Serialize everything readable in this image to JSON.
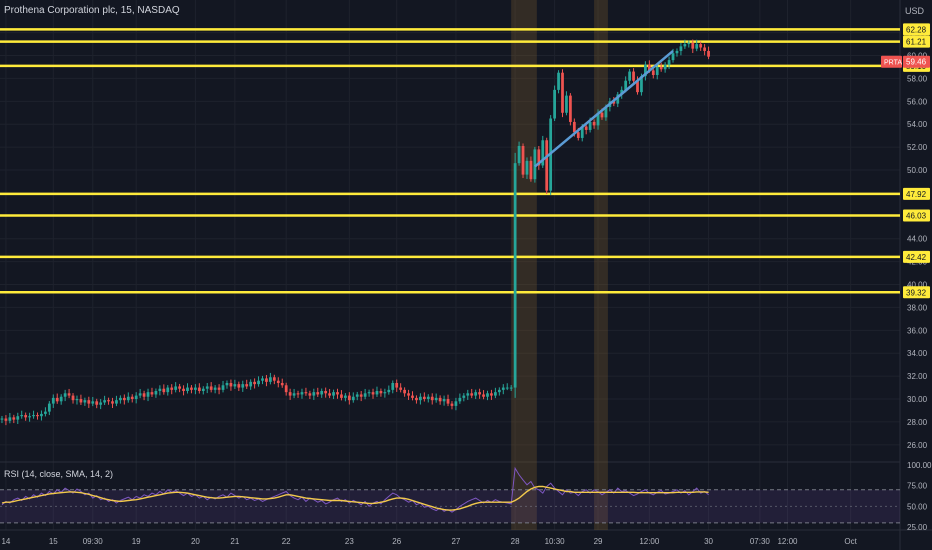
{
  "chart_title": "Prothena Corporation plc, 15, NASDAQ",
  "currency": "USD",
  "symbol": "PRTA",
  "last_price": "59.46",
  "chart_data": {
    "type": "candlestick",
    "y_ticks": [
      "62.00",
      "60.00",
      "58.00",
      "56.00",
      "54.00",
      "52.00",
      "50.00",
      "48.00",
      "46.00",
      "44.00",
      "42.00",
      "40.00",
      "38.00",
      "36.00",
      "34.00",
      "32.00",
      "30.00",
      "28.00",
      "26.00"
    ],
    "y_range": [
      24.5,
      64.5
    ],
    "x_ticks": [
      {
        "label": "14",
        "slot": 1
      },
      {
        "label": "15",
        "slot": 13
      },
      {
        "label": "09:30",
        "slot": 23
      },
      {
        "label": "19",
        "slot": 34
      },
      {
        "label": "20",
        "slot": 49
      },
      {
        "label": "21",
        "slot": 59
      },
      {
        "label": "22",
        "slot": 72
      },
      {
        "label": "23",
        "slot": 88
      },
      {
        "label": "26",
        "slot": 100
      },
      {
        "label": "27",
        "slot": 115
      },
      {
        "label": "28",
        "slot": 130
      },
      {
        "label": "10:30",
        "slot": 140
      },
      {
        "label": "29",
        "slot": 151
      },
      {
        "label": "12:00",
        "slot": 164
      },
      {
        "label": "30",
        "slot": 179
      },
      {
        "label": "07:30",
        "slot": 192
      },
      {
        "label": "12:00",
        "slot": 199
      },
      {
        "label": "Oct",
        "slot": 215
      }
    ],
    "slots": 228,
    "levels": [
      {
        "value": 62.28,
        "label": "62.28"
      },
      {
        "value": 61.21,
        "label": "61.21"
      },
      {
        "value": 59.1,
        "label": "59.10"
      },
      {
        "value": 47.92,
        "label": "47.92"
      },
      {
        "value": 46.03,
        "label": "46.03"
      },
      {
        "value": 42.42,
        "label": "42.42"
      },
      {
        "value": 39.32,
        "label": "39.32"
      }
    ],
    "trendline": {
      "from": [
        135,
        50.3
      ],
      "to": [
        170,
        60.4
      ]
    },
    "session_highlights": [
      [
        130,
        135
      ],
      [
        151,
        153
      ]
    ],
    "closes": [
      28.3,
      28.1,
      28.4,
      28.2,
      28.5,
      28.6,
      28.4,
      28.5,
      28.6,
      28.5,
      28.7,
      28.9,
      29.6,
      30.1,
      29.8,
      30.2,
      30.5,
      30.3,
      29.9,
      30.0,
      29.7,
      29.9,
      29.6,
      29.8,
      29.5,
      29.7,
      29.9,
      29.8,
      29.6,
      29.9,
      30.1,
      29.9,
      30.2,
      30.0,
      30.3,
      30.5,
      30.2,
      30.6,
      30.4,
      30.7,
      30.9,
      30.6,
      31.0,
      30.8,
      31.1,
      30.9,
      30.7,
      31.0,
      30.8,
      31.0,
      30.7,
      30.9,
      31.1,
      30.8,
      31.0,
      30.8,
      31.2,
      31.4,
      31.1,
      31.3,
      31.0,
      31.3,
      31.1,
      31.5,
      31.3,
      31.6,
      31.8,
      31.5,
      31.9,
      31.6,
      31.4,
      31.2,
      30.6,
      30.3,
      30.5,
      30.4,
      30.6,
      30.5,
      30.3,
      30.6,
      30.4,
      30.7,
      30.5,
      30.3,
      30.6,
      30.4,
      30.1,
      30.3,
      29.9,
      30.2,
      30.4,
      30.2,
      30.5,
      30.6,
      30.4,
      30.7,
      30.5,
      30.6,
      30.8,
      31.4,
      31.0,
      30.8,
      30.5,
      30.3,
      30.1,
      29.9,
      30.2,
      30.0,
      30.2,
      29.9,
      30.1,
      29.8,
      30.0,
      29.6,
      29.4,
      29.8,
      30.1,
      30.3,
      30.5,
      30.3,
      30.6,
      30.4,
      30.2,
      30.5,
      30.3,
      30.6,
      30.8,
      31.0,
      31.0,
      31.0,
      50.6,
      52.1,
      49.6,
      50.8,
      49.2,
      51.8,
      50.4,
      52.6,
      48.2,
      54.5,
      57.0,
      58.5,
      55.0,
      56.5,
      54.2,
      53.3,
      52.8,
      53.8,
      53.5,
      54.2,
      53.9,
      55.0,
      54.6,
      55.5,
      56.0,
      55.8,
      56.6,
      57.0,
      57.8,
      58.6,
      57.8,
      56.8,
      58.2,
      59.2,
      58.7,
      58.3,
      59.0,
      58.8,
      59.2,
      59.6,
      60.2,
      60.4,
      60.8,
      61.0,
      61.1,
      60.6,
      61.0,
      60.7,
      60.4,
      59.9
    ],
    "rsi_ticks": [
      "100.00",
      "75.00",
      "50.00",
      "25.00"
    ],
    "rsi_range": [
      25,
      100
    ],
    "rsi_bands": [
      30,
      70
    ],
    "rsi": [
      52,
      56,
      54,
      58,
      60,
      57,
      62,
      59,
      64,
      61,
      66,
      63,
      68,
      65,
      70,
      67,
      72,
      69,
      66,
      71,
      68,
      64,
      66,
      60,
      63,
      58,
      60,
      56,
      58,
      54,
      57,
      59,
      61,
      58,
      62,
      60,
      64,
      62,
      66,
      64,
      68,
      65,
      70,
      67,
      69,
      66,
      63,
      66,
      62,
      64,
      60,
      62,
      58,
      61,
      59,
      62,
      64,
      61,
      66,
      63,
      60,
      62,
      58,
      60,
      57,
      59,
      56,
      58,
      60,
      62,
      64,
      66,
      68,
      63,
      60,
      58,
      61,
      56,
      60,
      58,
      55,
      57,
      53,
      55,
      58,
      60,
      56,
      58,
      54,
      57,
      55,
      52,
      56,
      50,
      54,
      56,
      53,
      58,
      62,
      66,
      64,
      60,
      58,
      55,
      57,
      52,
      54,
      49,
      50,
      47,
      45,
      48,
      44,
      46,
      43,
      46,
      50,
      53,
      56,
      58,
      60,
      57,
      54,
      57,
      55,
      58,
      56,
      55,
      54,
      53,
      96,
      88,
      82,
      76,
      80,
      72,
      70,
      66,
      74,
      78,
      72,
      68,
      64,
      70,
      66,
      67,
      63,
      68,
      70,
      66,
      70,
      68,
      64,
      67,
      70,
      66,
      72,
      68,
      69,
      66,
      63,
      65,
      68,
      70,
      66,
      64,
      67,
      69,
      65,
      66,
      68,
      70,
      66,
      69,
      64,
      68,
      72,
      66,
      68,
      64
    ],
    "rsi_sma": [
      54,
      55,
      55,
      56,
      57,
      58,
      59,
      60,
      61,
      62,
      63,
      64,
      65,
      65.5,
      66,
      66.5,
      67,
      67.5,
      67.5,
      67,
      66.5,
      65.5,
      64.5,
      63,
      62,
      60.5,
      59,
      58,
      57,
      56.5,
      56,
      56.5,
      57,
      57.5,
      58,
      59,
      60,
      61,
      62,
      63,
      64,
      65,
      66,
      66.5,
      67,
      67,
      66.5,
      66,
      65,
      64,
      63,
      62,
      61,
      60.5,
      60,
      60,
      60.5,
      61,
      61.5,
      62,
      62,
      61.5,
      61,
      60.5,
      60,
      59.5,
      59,
      59,
      59.5,
      60,
      61,
      62.5,
      64,
      64,
      63,
      62,
      61,
      60,
      59.5,
      59,
      58.5,
      58,
      57.5,
      57,
      57,
      57,
      57,
      56.5,
      56,
      55.5,
      55,
      54.5,
      54,
      53.5,
      53.5,
      54,
      55,
      56,
      57.5,
      59,
      60,
      60,
      59.5,
      58.5,
      57,
      55.5,
      54,
      52.5,
      51,
      49.5,
      48,
      47,
      46,
      45.5,
      45.5,
      46,
      47,
      48.5,
      50,
      52,
      53.5,
      54.5,
      55,
      55,
      55,
      55,
      55,
      55,
      55,
      55,
      57,
      60,
      64,
      68,
      71,
      73,
      74,
      74,
      73,
      72,
      71,
      70,
      69,
      68,
      68,
      67,
      67,
      67,
      67,
      67,
      67,
      67,
      67,
      67,
      67,
      67,
      67,
      67,
      67,
      67,
      67,
      66.5,
      66.5,
      66.5,
      66.5,
      66.5,
      66.5,
      66.5,
      66.5,
      66.5,
      66.5,
      67,
      67,
      67,
      67,
      67,
      67.5,
      67.5,
      67.5,
      67
    ]
  },
  "rsi_title": "RSI (14, close, SMA, 14, 2)"
}
